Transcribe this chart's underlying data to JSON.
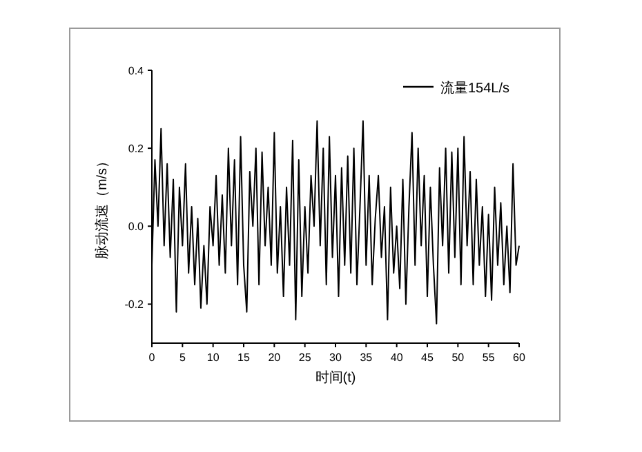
{
  "chart_data": {
    "type": "line",
    "xlabel": "时间(t)",
    "ylabel": "脉动流速（m/s）",
    "xlim": [
      0,
      60
    ],
    "ylim": [
      -0.3,
      0.4
    ],
    "xticks": [
      0,
      5,
      10,
      15,
      20,
      25,
      30,
      35,
      40,
      45,
      50,
      55,
      60
    ],
    "yticks": [
      -0.2,
      {
        "value": 0,
        "label": "0.0"
      },
      0.2,
      0.4
    ],
    "legend": "top right",
    "grid": false,
    "series": [
      {
        "name": "流量154L/s",
        "color": "#000000",
        "x": [
          0,
          0.5,
          1,
          1.5,
          2,
          2.5,
          3,
          3.5,
          4,
          4.5,
          5,
          5.5,
          6,
          6.5,
          7,
          7.5,
          8,
          8.5,
          9,
          9.5,
          10,
          10.5,
          11,
          11.5,
          12,
          12.5,
          13,
          13.5,
          14,
          14.5,
          15,
          15.5,
          16,
          16.5,
          17,
          17.5,
          18,
          18.5,
          19,
          19.5,
          20,
          20.5,
          21,
          21.5,
          22,
          22.5,
          23,
          23.5,
          24,
          24.5,
          25,
          25.5,
          26,
          26.5,
          27,
          27.5,
          28,
          28.5,
          29,
          29.5,
          30,
          30.5,
          31,
          31.5,
          32,
          32.5,
          33,
          33.5,
          34,
          34.5,
          35,
          35.5,
          36,
          36.5,
          37,
          37.5,
          38,
          38.5,
          39,
          39.5,
          40,
          40.5,
          41,
          41.5,
          42,
          42.5,
          43,
          43.5,
          44,
          44.5,
          45,
          45.5,
          46,
          46.5,
          47,
          47.5,
          48,
          48.5,
          49,
          49.5,
          50,
          50.5,
          51,
          51.5,
          52,
          52.5,
          53,
          53.5,
          54,
          54.5,
          55,
          55.5,
          56,
          56.5,
          57,
          57.5,
          58,
          58.5,
          59,
          59.5,
          60
        ],
        "values": [
          -0.1,
          0.17,
          0.0,
          0.25,
          -0.05,
          0.16,
          -0.08,
          0.12,
          -0.22,
          0.1,
          -0.05,
          0.16,
          -0.12,
          0.05,
          -0.15,
          0.02,
          -0.21,
          -0.05,
          -0.2,
          0.05,
          -0.05,
          0.13,
          -0.1,
          0.08,
          -0.12,
          0.2,
          -0.05,
          0.17,
          -0.15,
          0.23,
          -0.1,
          -0.22,
          0.14,
          0.0,
          0.2,
          -0.15,
          0.19,
          -0.05,
          0.1,
          -0.1,
          0.24,
          -0.12,
          0.05,
          -0.18,
          0.1,
          -0.1,
          0.22,
          -0.24,
          0.17,
          -0.18,
          0.05,
          -0.12,
          0.13,
          0.0,
          0.27,
          -0.05,
          0.2,
          -0.15,
          0.23,
          -0.08,
          0.13,
          -0.18,
          0.15,
          -0.1,
          0.18,
          -0.12,
          0.2,
          -0.15,
          0.05,
          0.27,
          -0.1,
          0.13,
          -0.15,
          0.02,
          0.13,
          -0.08,
          0.05,
          -0.24,
          0.1,
          -0.12,
          0.0,
          -0.16,
          0.12,
          -0.2,
          0.05,
          0.24,
          -0.1,
          0.2,
          -0.05,
          0.13,
          -0.18,
          0.1,
          -0.1,
          -0.25,
          0.15,
          -0.05,
          0.2,
          -0.12,
          0.19,
          -0.08,
          0.2,
          -0.15,
          0.23,
          -0.05,
          0.14,
          -0.15,
          0.12,
          -0.1,
          0.05,
          -0.18,
          0.03,
          -0.19,
          0.1,
          -0.1,
          0.06,
          -0.15,
          0.0,
          -0.17,
          0.16,
          -0.1,
          -0.05
        ]
      }
    ]
  }
}
